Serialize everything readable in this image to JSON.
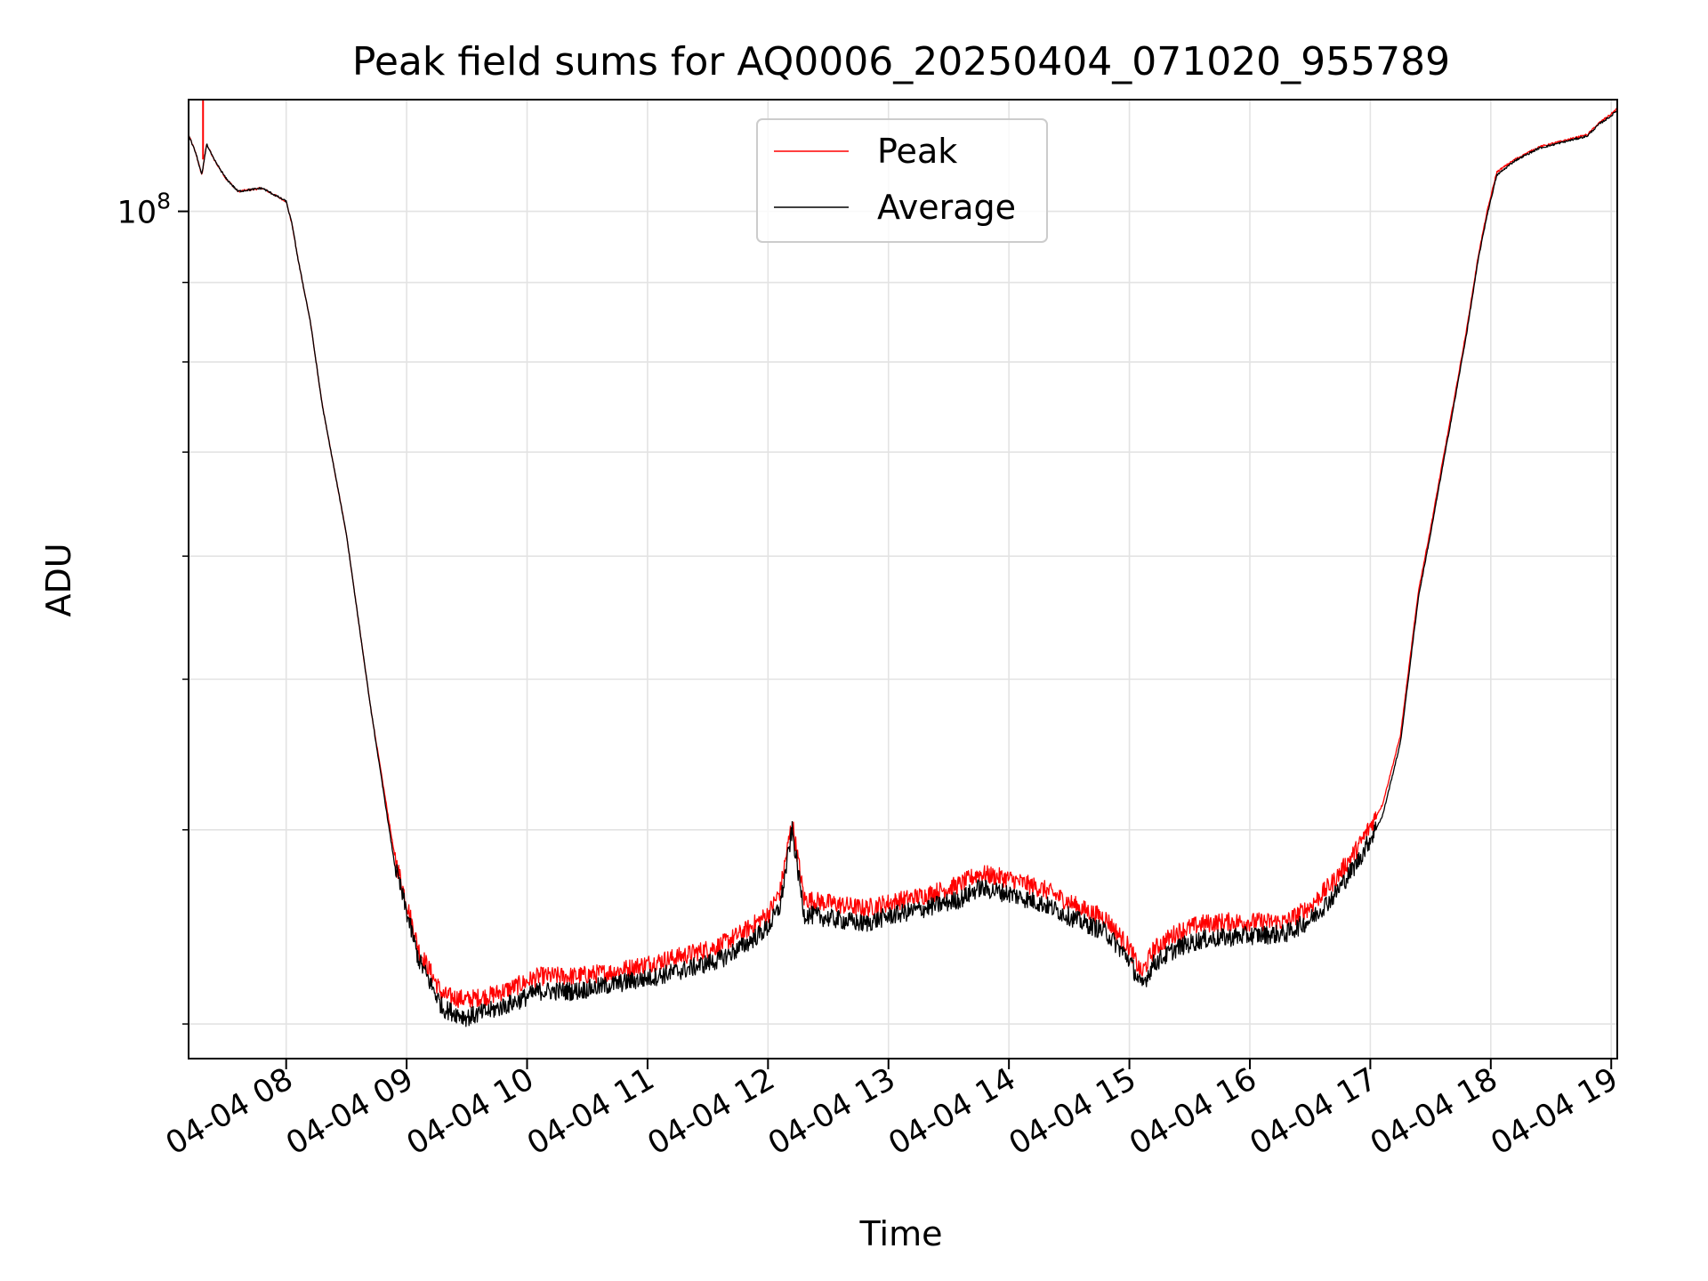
{
  "chart_data": {
    "type": "line",
    "title": "Peak field sums for AQ0006_20250404_071020_955789",
    "xlabel": "Time",
    "ylabel": "ADU",
    "yscale": "log",
    "ylim": [
      28500000,
      118000000
    ],
    "xlim_hours": [
      7.19,
      19.05
    ],
    "grid": true,
    "legend_position": "top-center",
    "x_ticks": [
      {
        "hour": 8,
        "label": "04-04 08"
      },
      {
        "hour": 9,
        "label": "04-04 09"
      },
      {
        "hour": 10,
        "label": "04-04 10"
      },
      {
        "hour": 11,
        "label": "04-04 11"
      },
      {
        "hour": 12,
        "label": "04-04 12"
      },
      {
        "hour": 13,
        "label": "04-04 13"
      },
      {
        "hour": 14,
        "label": "04-04 14"
      },
      {
        "hour": 15,
        "label": "04-04 15"
      },
      {
        "hour": 16,
        "label": "04-04 16"
      },
      {
        "hour": 17,
        "label": "04-04 17"
      },
      {
        "hour": 18,
        "label": "04-04 18"
      },
      {
        "hour": 19,
        "label": "04-04 19"
      }
    ],
    "y_major_ticks": [
      {
        "value": 100000000,
        "label_base": "10",
        "label_exp": "8"
      }
    ],
    "y_minor_ticks": [
      30000000,
      40000000,
      50000000,
      60000000,
      70000000,
      80000000,
      90000000
    ],
    "time_hours": [
      7.19,
      7.25,
      7.3,
      7.34,
      7.4,
      7.5,
      7.6,
      7.8,
      8.0,
      8.05,
      8.1,
      8.2,
      8.3,
      8.5,
      8.7,
      8.9,
      9.1,
      9.3,
      9.5,
      9.7,
      9.9,
      10.1,
      10.4,
      10.7,
      11.0,
      11.3,
      11.6,
      11.8,
      12.0,
      12.1,
      12.2,
      12.3,
      12.5,
      12.8,
      13.0,
      13.3,
      13.6,
      13.75,
      14.0,
      14.3,
      14.6,
      14.8,
      15.0,
      15.1,
      15.2,
      15.4,
      15.6,
      15.8,
      16.0,
      16.3,
      16.5,
      16.7,
      16.9,
      17.1,
      17.25,
      17.4,
      17.5,
      17.6,
      17.7,
      17.8,
      17.9,
      17.97,
      18.05,
      18.2,
      18.4,
      18.6,
      18.8,
      18.9,
      19.0,
      19.05
    ],
    "series": [
      {
        "name": "Peak",
        "color": "#ff0000",
        "values": [
          112000000,
          109000000,
          105500000,
          110500000,
          108000000,
          105000000,
          103000000,
          103500000,
          101500000,
          98000000,
          93000000,
          85000000,
          75000000,
          62000000,
          48000000,
          38500000,
          33500000,
          31300000,
          31100000,
          31300000,
          31700000,
          32200000,
          32200000,
          32400000,
          32800000,
          33200000,
          33700000,
          34400000,
          35300000,
          36500000,
          40500000,
          36100000,
          35900000,
          35600000,
          35900000,
          36300000,
          36900000,
          37500000,
          37200000,
          36600000,
          35600000,
          35100000,
          33600000,
          32300000,
          33500000,
          34400000,
          34800000,
          34900000,
          34900000,
          34900000,
          35700000,
          37100000,
          39000000,
          41500000,
          46000000,
          57000000,
          62500000,
          69000000,
          76000000,
          84000000,
          94000000,
          100000000,
          106000000,
          108000000,
          110000000,
          111000000,
          112000000,
          114000000,
          115500000,
          116500000
        ]
      },
      {
        "name": "Average",
        "color": "#000000",
        "values": [
          112000000,
          109000000,
          105500000,
          110500000,
          108000000,
          105000000,
          103000000,
          103500000,
          101500000,
          98000000,
          93000000,
          85000000,
          75000000,
          62000000,
          48000000,
          38000000,
          33000000,
          30700000,
          30300000,
          30600000,
          31000000,
          31500000,
          31500000,
          31800000,
          32100000,
          32500000,
          33000000,
          33700000,
          34600000,
          35700000,
          40000000,
          35300000,
          35100000,
          34800000,
          35200000,
          35600000,
          36100000,
          36700000,
          36400000,
          35800000,
          34900000,
          34400000,
          33000000,
          31700000,
          32800000,
          33600000,
          34000000,
          34100000,
          34200000,
          34300000,
          35000000,
          36300000,
          38200000,
          40800000,
          45500000,
          56500000,
          62000000,
          68500000,
          75500000,
          83500000,
          93500000,
          99500000,
          105500000,
          107800000,
          109800000,
          110800000,
          111800000,
          113800000,
          115200000,
          116200000
        ]
      }
    ]
  }
}
